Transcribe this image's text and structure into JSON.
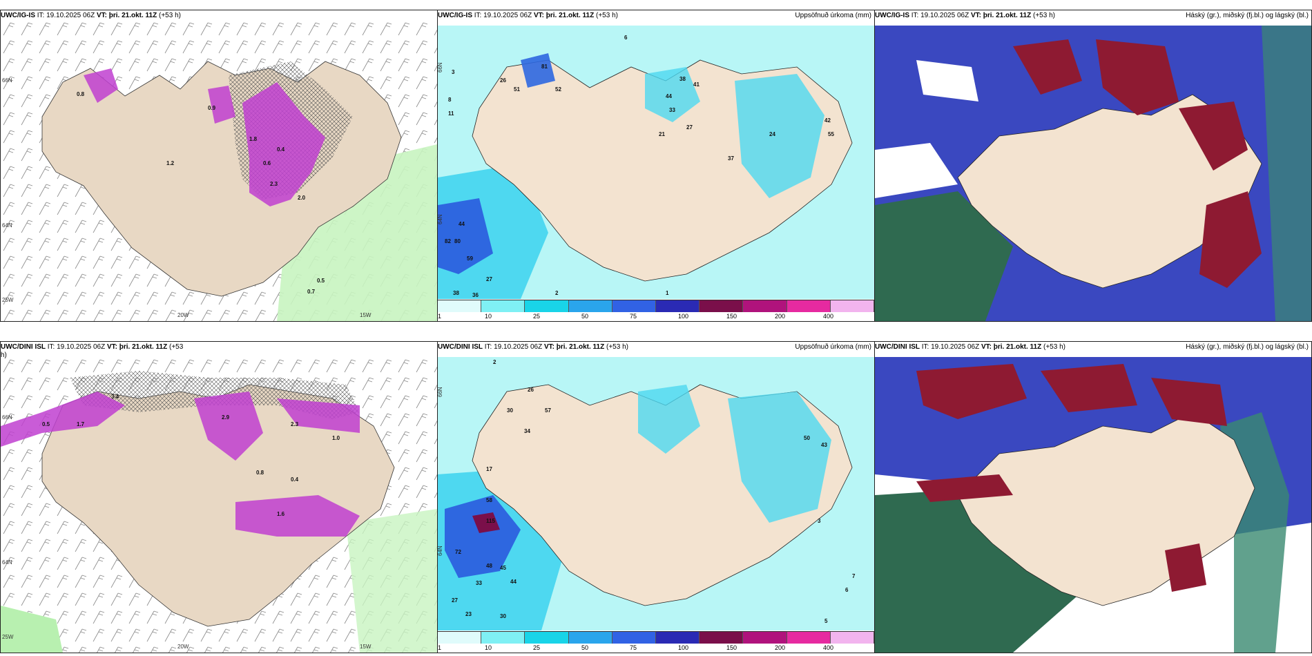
{
  "panels": {
    "top_left": {
      "model": "UWC/IG-IS",
      "it": "IT: 19.10.2025 06Z",
      "vt_label": "VT:",
      "vt": "þri. 21.okt. 11Z",
      "lead": "(+53 h)",
      "lat_labels": [
        "66N",
        "64N",
        "25W"
      ],
      "lon_labels": [
        "20W",
        "15W"
      ],
      "values": [
        "0.8",
        "0.9",
        "1.8",
        "2.3",
        "2.0",
        "0.6",
        "0.4",
        "0.5",
        "0.7",
        "1.2"
      ]
    },
    "top_mid": {
      "model": "UWC/IG-IS",
      "it": "IT: 19.10.2025 06Z",
      "vt_label": "VT:",
      "vt": "þri. 21.okt. 11Z",
      "lead": "(+53 h)",
      "product": "Uppsöfnuð úrkoma (mm)",
      "lat_labels": [
        "66N",
        "64N"
      ],
      "values": [
        "3",
        "6",
        "8",
        "11",
        "26",
        "51",
        "52",
        "81",
        "38",
        "41",
        "44",
        "33",
        "27",
        "21",
        "24",
        "37",
        "42",
        "55",
        "44",
        "82",
        "80",
        "59",
        "27",
        "38",
        "36",
        "2",
        "1"
      ]
    },
    "top_right": {
      "model": "UWC/IG-IS",
      "it": "IT: 19.10.2025 06Z",
      "vt_label": "VT:",
      "vt": "þri. 21.okt. 11Z",
      "lead": "(+53 h)",
      "product": "Háský (gr.), miðský (fj.bl.) og lágský (bl.)"
    },
    "bottom_left": {
      "model": "UWC/DINI ISL",
      "it": "IT: 19.10.2025 06Z",
      "vt_label": "VT:",
      "vt": "þri. 21.okt. 11Z",
      "lead": "(+53",
      "lead_wrap": "h)",
      "lat_labels": [
        "66N",
        "64N",
        "25W"
      ],
      "lon_labels": [
        "20W",
        "15W"
      ],
      "values": [
        "3.4",
        "2.9",
        "2.3",
        "1.7",
        "1.6",
        "0.8",
        "0.5",
        "1.0",
        "0.4"
      ]
    },
    "bottom_mid": {
      "model": "UWC/DINI ISL",
      "it": "IT: 19.10.2025 06Z",
      "vt_label": "VT:",
      "vt": "þri. 21.okt. 11Z",
      "lead": "(+53 h)",
      "product": "Uppsöfnuð úrkoma (mm)",
      "lat_labels": [
        "66N",
        "64N"
      ],
      "values": [
        "2",
        "26",
        "57",
        "34",
        "30",
        "17",
        "58",
        "115",
        "72",
        "48",
        "45",
        "33",
        "44",
        "27",
        "23",
        "30",
        "50",
        "43",
        "3",
        "5",
        "7",
        "6"
      ]
    },
    "bottom_right": {
      "model": "UWC/DINI ISL",
      "it": "IT: 19.10.2025 06Z",
      "vt_label": "VT:",
      "vt": "þri. 21.okt. 11Z",
      "lead": "(+53 h)",
      "product": "Háský (gr.), miðský (fj.bl.) og lágský (bl.)"
    }
  },
  "colorbar": {
    "labels": [
      "1",
      "10",
      "25",
      "50",
      "75",
      "100",
      "150",
      "200",
      "400"
    ],
    "colors": [
      "#e0fbfb",
      "#7ff0f4",
      "#19d4e8",
      "#2aa5ec",
      "#3162e4",
      "#2a2ab4",
      "#7a0f4a",
      "#b0137c",
      "#e62aa0",
      "#f2b4ee"
    ]
  },
  "colors": {
    "land": "#f3e3d0",
    "sea_precip": "#b8f6f6",
    "precip_mid": "#4ed8f0",
    "precip_heavy": "#2e67e0",
    "snow": "#c040d0",
    "green_precip": "#b8f0b0",
    "cloud_high": "#2f8a58",
    "cloud_mid": "#3a48c0",
    "cloud_low": "#8e1a32"
  }
}
